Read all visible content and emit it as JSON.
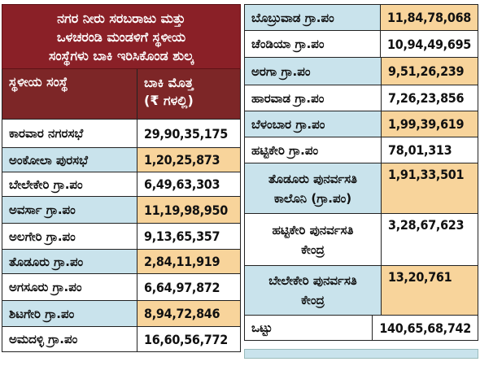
{
  "title": {
    "line1": "ನಗರ ನೀರು ಸರಬರಾಜು ಮತ್ತು",
    "line2": "ಒಳಚರಂಡಿ ಮಂಡಳಿಗೆ ಸ್ಥಳೀಯ",
    "line3": "ಸಂಸ್ಥೆಗಳು ಬಾಕಿ ಇರಿಸಿಕೊಂಡ ಶುಲ್ಕ"
  },
  "header": {
    "name": "ಸ್ಥಳೀಯ ಸಂಸ್ಥೆ",
    "amount_line1": "ಬಾಕಿ ಮೊತ್ತ",
    "amount_line2": "(₹ ಗಳಲ್ಲಿ)"
  },
  "left_rows": [
    {
      "name": "ಕಾರವಾರ ನಗರಸಭೆ",
      "amount": "29,90,35,175"
    },
    {
      "name": "ಅಂಕೋಲಾ ಪುರಸಭೆ",
      "amount": "1,20,25,873"
    },
    {
      "name": "ಬೇಲೇಕೇರಿ ಗ್ರಾ.ಪಂ",
      "amount": "6,49,63,303"
    },
    {
      "name": "ಅವರ್ಸಾ ಗ್ರಾ.ಪಂ",
      "amount": "11,19,98,950"
    },
    {
      "name": "ಅಲಗೇರಿ ಗ್ರಾ.ಪಂ",
      "amount": "9,13,65,357"
    },
    {
      "name": "ತೊಡೂರು ಗ್ರಾ.ಪಂ",
      "amount": "2,84,11,919"
    },
    {
      "name": "ಅಗಸೂರು ಗ್ರಾ.ಪಂ",
      "amount": "6,64,97,872"
    },
    {
      "name": "ಶಿಟಗೇರಿ ಗ್ರಾ.ಪಂ",
      "amount": "8,94,72,846"
    },
    {
      "name": "ಅಮದಳ್ಳಿ ಗ್ರಾ.ಪಂ",
      "amount": "16,60,56,772"
    }
  ],
  "right_rows": [
    {
      "name": "ಬೊಬ್ರುವಾಡ ಗ್ರಾ.ಪಂ",
      "amount": "11,84,78,068"
    },
    {
      "name": "ಚೆಂಡಿಯಾ ಗ್ರಾ.ಪಂ",
      "amount": "10,94,49,695"
    },
    {
      "name": "ಅರಗಾ ಗ್ರಾ.ಪಂ",
      "amount": "9,51,26,239"
    },
    {
      "name": "ಹಾರವಾಡ ಗ್ರಾ.ಪಂ",
      "amount": "7,26,23,856"
    },
    {
      "name": "ಬೆಳಂಬಾರ ಗ್ರಾ.ಪಂ",
      "amount": "1,99,39,619"
    },
    {
      "name": "ಹಟ್ಟಿಕೇರಿ ಗ್ರಾ.ಪಂ",
      "amount": "78,01,313"
    },
    {
      "name_line1": "ತೊಡೂರು ಪುನರ್ವಸತಿ",
      "name_line2": "ಕಾಲೊನಿ (ಗ್ರಾ.ಪಂ)",
      "amount": "1,91,33,501"
    },
    {
      "name_line1": "ಹಟ್ಟಿಕೇರಿ ಪುನರ್ವಸತಿ",
      "name_line2": "ಕೇಂದ್ರ",
      "amount": "3,28,67,623"
    },
    {
      "name_line1": "ಬೇಲೇಕೇರಿ ಪುನರ್ವಸತಿ",
      "name_line2": "ಕೇಂದ್ರ",
      "amount": "13,20,761"
    },
    {
      "name": "ಒಟ್ಟು",
      "amount": "140,65,68,742"
    }
  ],
  "colors": {
    "title_bg": "#8a2027",
    "header_bg": "#7d2627",
    "row_blue": "#c9e3ec",
    "row_orange": "#f8d49b",
    "row_white": "#ffffff"
  }
}
